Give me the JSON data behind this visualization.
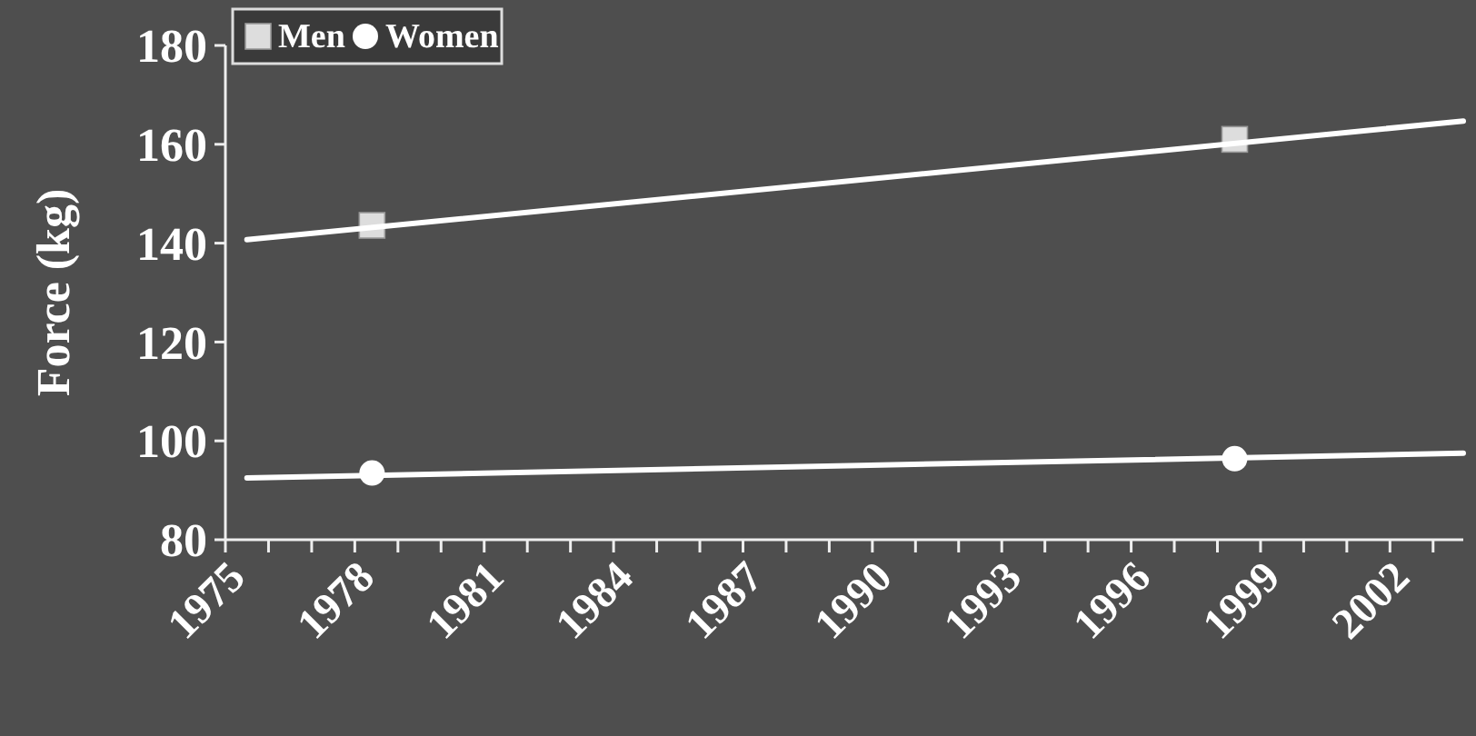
{
  "chart_data": {
    "type": "scatter",
    "ylabel": "Force (kg)",
    "xlim": [
      1975,
      2003.7
    ],
    "ylim": [
      80,
      180
    ],
    "xticks": [
      1975,
      {
        "value": 1976,
        "label": null
      },
      {
        "value": 1977,
        "label": null
      },
      1978,
      {
        "value": 1979,
        "label": null
      },
      {
        "value": 1980,
        "label": null
      },
      1981,
      {
        "value": 1982,
        "label": null
      },
      {
        "value": 1983,
        "label": null
      },
      1984,
      {
        "value": 1985,
        "label": null
      },
      {
        "value": 1986,
        "label": null
      },
      1987,
      {
        "value": 1988,
        "label": null
      },
      {
        "value": 1989,
        "label": null
      },
      1990,
      {
        "value": 1991,
        "label": null
      },
      {
        "value": 1992,
        "label": null
      },
      1993,
      {
        "value": 1994,
        "label": null
      },
      {
        "value": 1995,
        "label": null
      },
      1996,
      {
        "value": 1997,
        "label": null
      },
      {
        "value": 1998,
        "label": null
      },
      1999,
      {
        "value": 2000,
        "label": null
      },
      {
        "value": 2001,
        "label": null
      },
      2002,
      {
        "value": 2003,
        "label": null
      }
    ],
    "yticks": [
      80,
      100,
      120,
      140,
      160,
      180
    ],
    "grid": false,
    "legend": "top left",
    "series": [
      {
        "name": "Men",
        "marker": "square",
        "color": "#dddddd",
        "x": [
          1978.4,
          1998.4
        ],
        "values": [
          143.6,
          161
        ]
      },
      {
        "name": "Women",
        "marker": "circle",
        "color": "#ffffff",
        "x": [
          1978.4,
          1998.4
        ],
        "values": [
          93.5,
          96.4
        ]
      },
      {
        "type": "line",
        "color": "#ffffff",
        "x": [
          1975.5,
          2003.7
        ],
        "values": [
          140.7,
          164.7
        ]
      },
      {
        "type": "line",
        "color": "#ffffff",
        "x": [
          1975.5,
          2003.7
        ],
        "values": [
          92.5,
          97.5
        ]
      }
    ]
  }
}
